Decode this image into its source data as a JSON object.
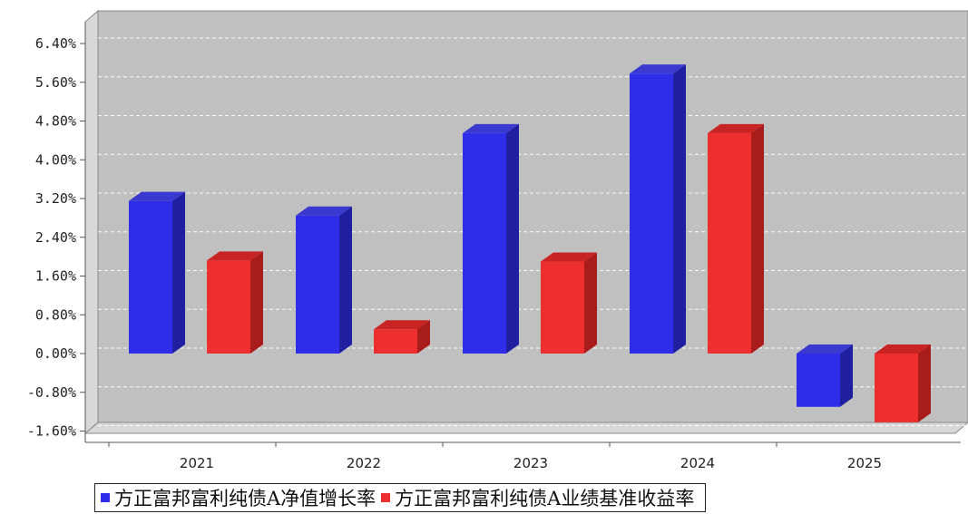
{
  "chart_data": {
    "type": "bar",
    "categories": [
      "2021",
      "2022",
      "2023",
      "2024",
      "2025"
    ],
    "series": [
      {
        "name": "方正富邦富利纯债A净值增长率",
        "color": "#2e2ee8",
        "side_color": "#1f1fa0",
        "top_color": "#3a3ad0",
        "values": [
          3.15,
          2.85,
          4.55,
          5.78,
          -1.1
        ]
      },
      {
        "name": "方正富邦富利纯债A业绩基准收益率",
        "color": "#ee2f2f",
        "side_color": "#a81c1c",
        "top_color": "#c82424",
        "values": [
          1.92,
          0.5,
          1.9,
          4.55,
          -1.42
        ]
      }
    ],
    "yticks": [
      "6.40%",
      "5.60%",
      "4.80%",
      "4.00%",
      "3.20%",
      "2.40%",
      "1.60%",
      "0.80%",
      "0.00%",
      "-0.80%",
      "-1.60%"
    ],
    "ylim": [
      -1.6,
      6.4
    ],
    "grid": true,
    "legend_position": "bottom",
    "plot_background": "#c0c0c0"
  }
}
